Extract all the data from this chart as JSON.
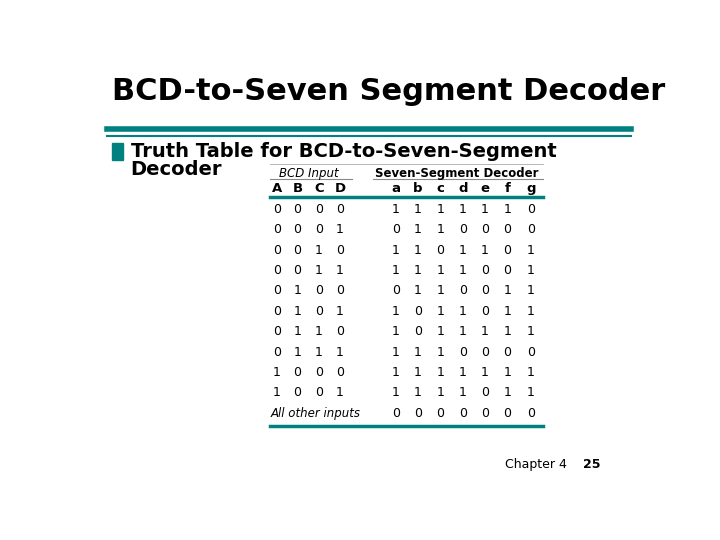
{
  "title": "BCD-to-Seven Segment Decoder",
  "bullet_text_line1": "Truth Table for BCD-to-Seven-Segment",
  "bullet_text_line2": "Decoder",
  "teal_color": "#008080",
  "title_color": "#000000",
  "bg_color": "#ffffff",
  "header1": "BCD Input",
  "header2": "Seven-Segment Decoder",
  "col_headers": [
    "A",
    "B",
    "C",
    "D",
    "",
    "a",
    "b",
    "c",
    "d",
    "e",
    "f",
    "g"
  ],
  "table_data": [
    [
      0,
      0,
      0,
      0,
      "",
      1,
      1,
      1,
      1,
      1,
      1,
      0
    ],
    [
      0,
      0,
      0,
      1,
      "",
      0,
      1,
      1,
      0,
      0,
      0,
      0
    ],
    [
      0,
      0,
      1,
      0,
      "",
      1,
      1,
      0,
      1,
      1,
      0,
      1
    ],
    [
      0,
      0,
      1,
      1,
      "",
      1,
      1,
      1,
      1,
      0,
      0,
      1
    ],
    [
      0,
      1,
      0,
      0,
      "",
      0,
      1,
      1,
      0,
      0,
      1,
      1
    ],
    [
      0,
      1,
      0,
      1,
      "",
      1,
      0,
      1,
      1,
      0,
      1,
      1
    ],
    [
      0,
      1,
      1,
      0,
      "",
      1,
      0,
      1,
      1,
      1,
      1,
      1
    ],
    [
      0,
      1,
      1,
      1,
      "",
      1,
      1,
      1,
      0,
      0,
      0,
      0
    ],
    [
      1,
      0,
      0,
      0,
      "",
      1,
      1,
      1,
      1,
      1,
      1,
      1
    ],
    [
      1,
      0,
      0,
      1,
      "",
      1,
      1,
      1,
      1,
      0,
      1,
      1
    ]
  ],
  "last_row_label": "All other inputs",
  "last_row_values": [
    0,
    0,
    0,
    0,
    0,
    0,
    0
  ],
  "footer_text": "Chapter 4",
  "footer_num": "25"
}
